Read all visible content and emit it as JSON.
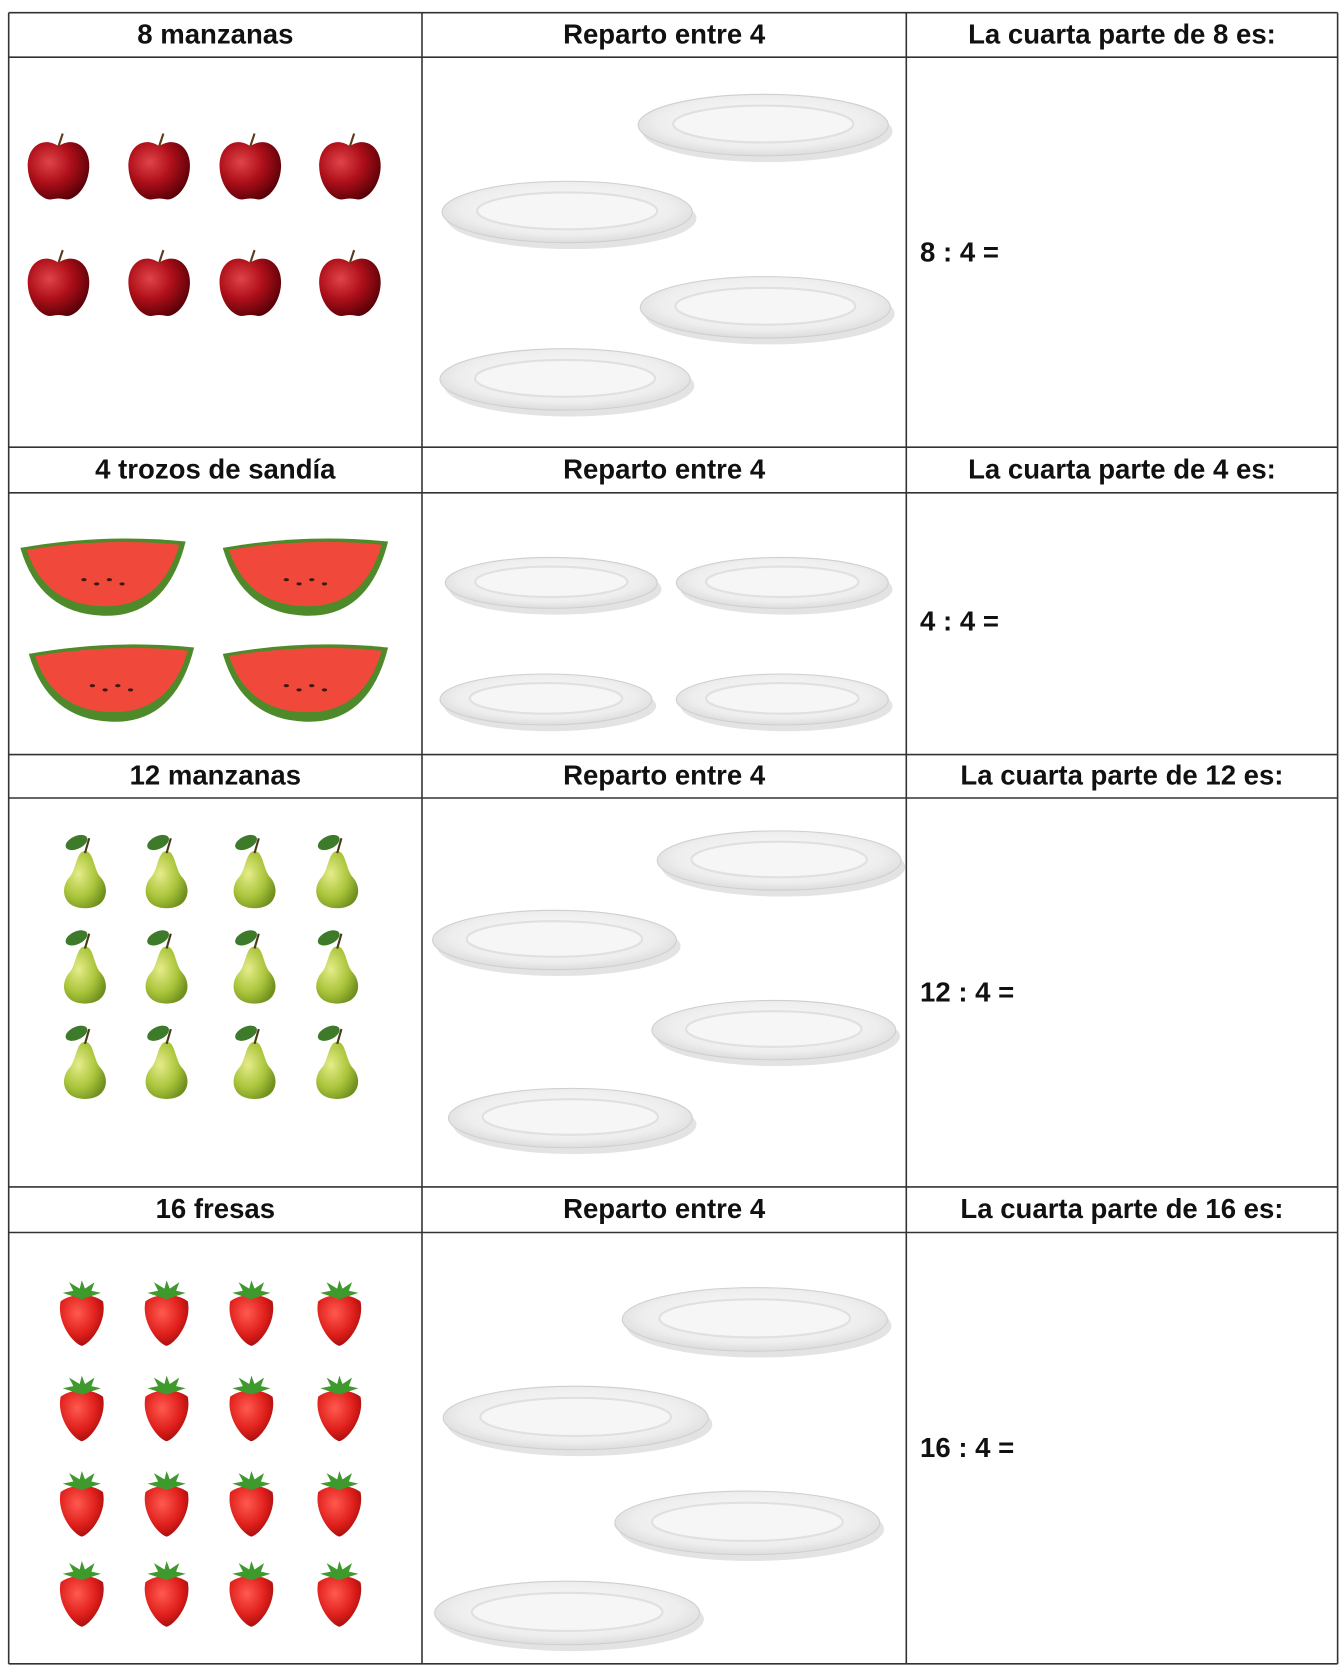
{
  "sections": [
    {
      "quantity": "8 manzanas",
      "share": "Reparto entre 4",
      "part": "La cuarta parte de 8 es:",
      "equation": "8 : 4 ="
    },
    {
      "quantity": "4 trozos de sandía",
      "share": "Reparto entre 4",
      "part": "La cuarta parte de 4 es:",
      "equation": "4 : 4 ="
    },
    {
      "quantity": "12 manzanas",
      "share": "Reparto entre 4",
      "part": "La cuarta parte de 12 es:",
      "equation": "12 : 4 ="
    },
    {
      "quantity": "16 fresas",
      "share": "Reparto entre 4",
      "part": "La cuarta parte de 16 es:",
      "equation": "16 : 4 ="
    }
  ]
}
